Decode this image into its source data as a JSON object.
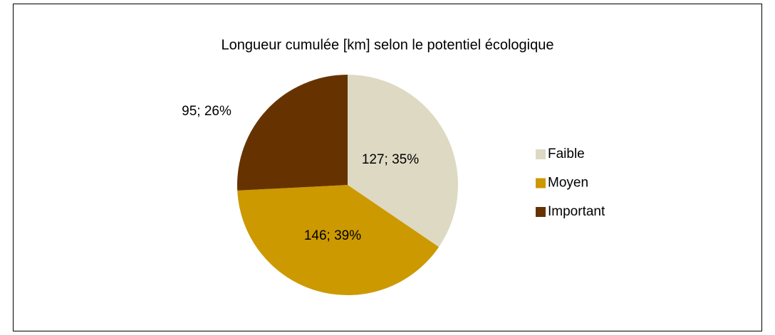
{
  "chart_data": {
    "type": "pie",
    "title": "Longueur cumulée [km] selon le potentiel écologique",
    "categories": [
      "Faible",
      "Moyen",
      "Important"
    ],
    "values": [
      127,
      146,
      95
    ],
    "value_labels": [
      "127; 35%",
      "146; 39%",
      "95; 26%"
    ],
    "colors": [
      "#ddd9c3",
      "#cc9900",
      "#663300"
    ],
    "legend": "right"
  }
}
